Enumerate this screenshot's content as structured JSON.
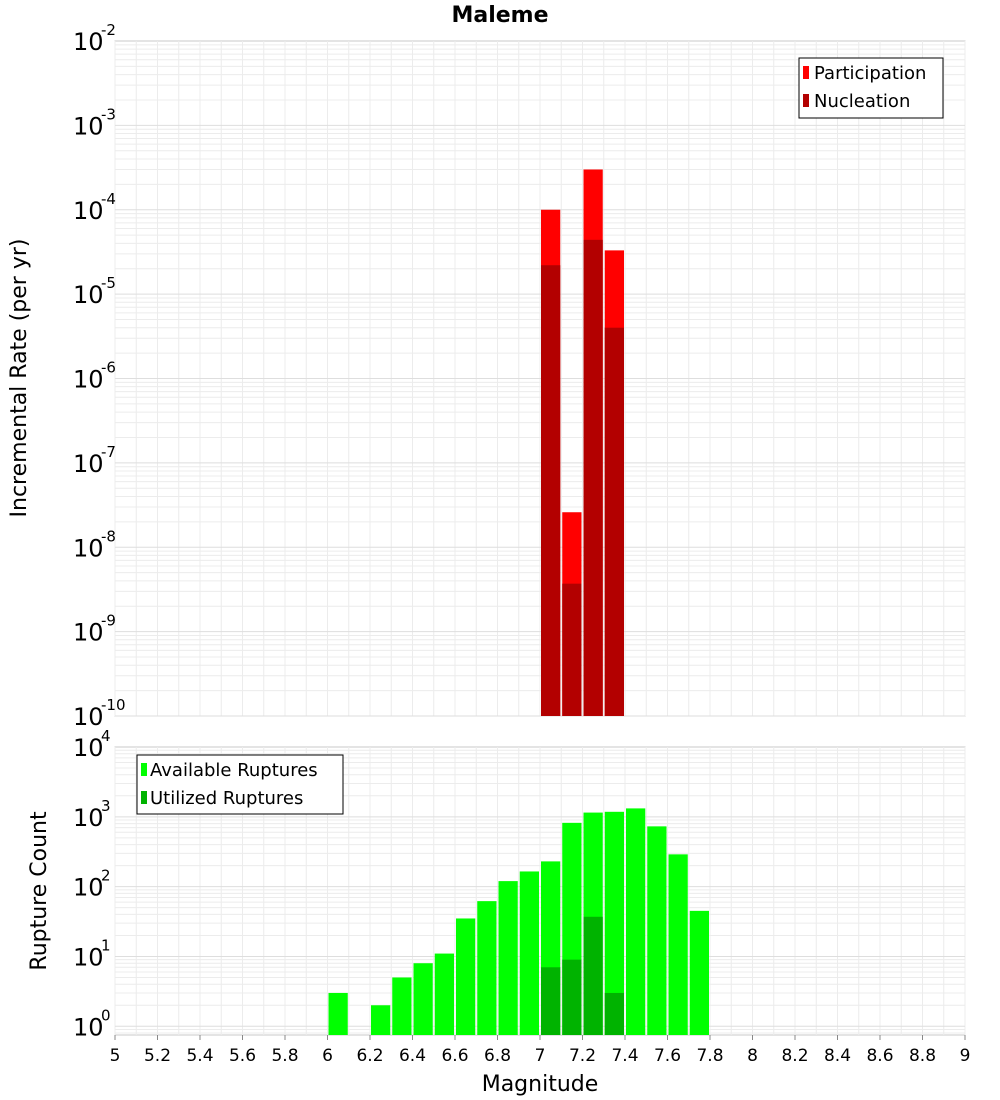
{
  "chart_data": [
    {
      "type": "bar",
      "title": "Maleme",
      "ylabel": "Incremental Rate (per yr)",
      "yscale": "log",
      "ylim": [
        1e-10,
        0.01
      ],
      "xlim": [
        5,
        9
      ],
      "bin_width": 0.1,
      "y_tick_labels": [
        {
          "base": "10",
          "exp": "-2"
        },
        {
          "base": "10",
          "exp": "-3"
        },
        {
          "base": "10",
          "exp": "-4"
        },
        {
          "base": "10",
          "exp": "-5"
        },
        {
          "base": "10",
          "exp": "-6"
        },
        {
          "base": "10",
          "exp": "-7"
        },
        {
          "base": "10",
          "exp": "-8"
        },
        {
          "base": "10",
          "exp": "-9"
        },
        {
          "base": "10",
          "exp": "-10"
        }
      ],
      "grid": true,
      "legend_position": "top-right",
      "x": [
        7.05,
        7.15,
        7.25,
        7.35
      ],
      "series": [
        {
          "name": "Participation",
          "color": "#ff0000",
          "values": [
            0.0001,
            2.6e-08,
            0.0003,
            3.3e-05
          ]
        },
        {
          "name": "Nucleation",
          "color": "#b30000",
          "values": [
            2.2e-05,
            3.7e-09,
            4.4e-05,
            4e-06
          ]
        }
      ]
    },
    {
      "type": "bar",
      "xlabel": "Magnitude",
      "ylabel": "Rupture Count",
      "yscale": "log",
      "ylim": [
        0.75,
        10000
      ],
      "xlim": [
        5,
        9
      ],
      "bin_width": 0.1,
      "y_tick_labels": [
        {
          "base": "10",
          "exp": "4"
        },
        {
          "base": "10",
          "exp": "3"
        },
        {
          "base": "10",
          "exp": "2"
        },
        {
          "base": "10",
          "exp": "1"
        },
        {
          "base": "10",
          "exp": "0"
        }
      ],
      "x_tick_labels": [
        "5",
        "5.2",
        "5.4",
        "5.6",
        "5.8",
        "6",
        "6.2",
        "6.4",
        "6.6",
        "6.8",
        "7",
        "7.2",
        "7.4",
        "7.6",
        "7.8",
        "8",
        "8.2",
        "8.4",
        "8.6",
        "8.8",
        "9"
      ],
      "grid": true,
      "legend_position": "top-left",
      "series": [
        {
          "name": "Available Ruptures",
          "color": "#00ff00",
          "x": [
            6.05,
            6.25,
            6.35,
            6.45,
            6.55,
            6.65,
            6.75,
            6.85,
            6.95,
            7.05,
            7.15,
            7.25,
            7.35,
            7.45,
            7.55,
            7.65,
            7.75
          ],
          "values": [
            3,
            2,
            5,
            8,
            11,
            35,
            62,
            120,
            165,
            230,
            820,
            1150,
            1180,
            1320,
            730,
            290,
            45
          ]
        },
        {
          "name": "Utilized Ruptures",
          "color": "#00b300",
          "x": [
            7.05,
            7.15,
            7.25,
            7.35
          ],
          "values": [
            7,
            9,
            37,
            3
          ]
        }
      ]
    }
  ]
}
